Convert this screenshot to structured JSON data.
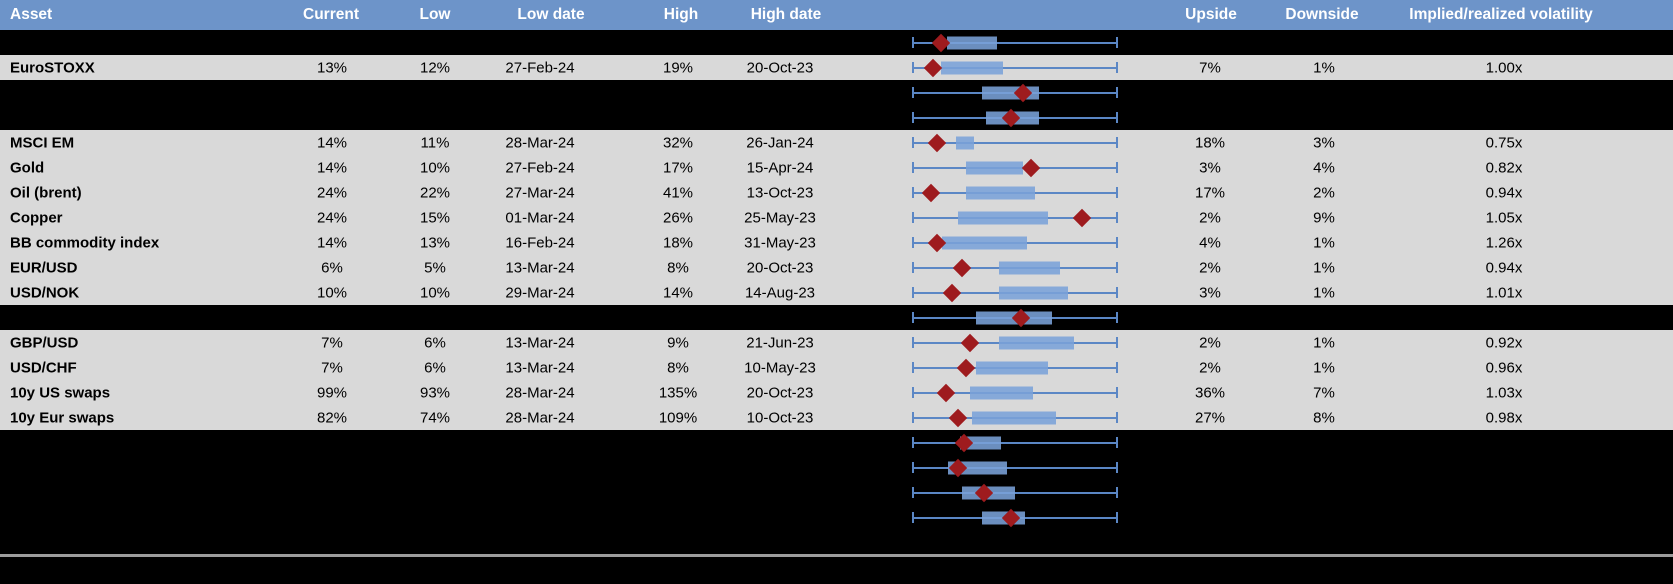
{
  "header": {
    "asset": "Asset",
    "current": "Current",
    "low": "Low",
    "low_date": "Low date",
    "high": "High",
    "high_date": "High date",
    "upside": "Upside",
    "downside": "Downside",
    "implied": "Implied/realized volatility"
  },
  "colors": {
    "header_bg": "#6D94C9",
    "header_text": "#FFFFFF",
    "data_row_bg": "#D9D9D9",
    "separator_row_bg": "#000000",
    "text": "#000000",
    "box_fill": "#7AA2D8",
    "whisker_line": "#5B87C5",
    "marker_diamond": "#9E1B1E",
    "bottom_divider": "#9C9C9C"
  },
  "table": {
    "rows": [
      {
        "type": "separator",
        "label": "",
        "current": "",
        "low": "",
        "low_date": "",
        "high": "",
        "high_date": "",
        "upside": "",
        "downside": "",
        "implied": "",
        "plot": {
          "box_lo": 0.165,
          "box_hi": 0.41,
          "marker": 0.136
        }
      },
      {
        "type": "data",
        "label": "EuroSTOXX",
        "current": "13%",
        "low": "12%",
        "low_date": "27-Feb-24",
        "high": "19%",
        "high_date": "20-Oct-23",
        "upside": "7%",
        "downside": "1%",
        "implied": "1.00x",
        "plot": {
          "box_lo": 0.137,
          "box_hi": 0.44,
          "marker": 0.098
        }
      },
      {
        "type": "separator",
        "label": "",
        "current": "",
        "low": "",
        "low_date": "",
        "high": "",
        "high_date": "",
        "upside": "",
        "downside": "",
        "implied": "",
        "plot": {
          "box_lo": 0.34,
          "box_hi": 0.62,
          "marker": 0.54
        }
      },
      {
        "type": "separator",
        "label": "",
        "current": "",
        "low": "",
        "low_date": "",
        "high": "",
        "high_date": "",
        "upside": "",
        "downside": "",
        "implied": "",
        "plot": {
          "box_lo": 0.36,
          "box_hi": 0.62,
          "marker": 0.48
        }
      },
      {
        "type": "data",
        "label": "MSCI EM",
        "current": "14%",
        "low": "11%",
        "low_date": "28-Mar-24",
        "high": "32%",
        "high_date": "26-Jan-24",
        "upside": "18%",
        "downside": "3%",
        "implied": "0.75x",
        "plot": {
          "box_lo": 0.21,
          "box_hi": 0.3,
          "marker": 0.12
        }
      },
      {
        "type": "data",
        "label": "Gold",
        "current": "14%",
        "low": "10%",
        "low_date": "27-Feb-24",
        "high": "17%",
        "high_date": "15-Apr-24",
        "upside": "3%",
        "downside": "4%",
        "implied": "0.82x",
        "plot": {
          "box_lo": 0.26,
          "box_hi": 0.54,
          "marker": 0.58
        }
      },
      {
        "type": "data",
        "label": "Oil (brent)",
        "current": "24%",
        "low": "22%",
        "low_date": "27-Mar-24",
        "high": "41%",
        "high_date": "13-Oct-23",
        "upside": "17%",
        "downside": "2%",
        "implied": "0.94x",
        "plot": {
          "box_lo": 0.26,
          "box_hi": 0.6,
          "marker": 0.09
        }
      },
      {
        "type": "data",
        "label": "Copper",
        "current": "24%",
        "low": "15%",
        "low_date": "01-Mar-24",
        "high": "26%",
        "high_date": "25-May-23",
        "upside": "2%",
        "downside": "9%",
        "implied": "1.05x",
        "plot": {
          "box_lo": 0.22,
          "box_hi": 0.66,
          "marker": 0.83
        }
      },
      {
        "type": "data",
        "label": "BB commodity index",
        "current": "14%",
        "low": "13%",
        "low_date": "16-Feb-24",
        "high": "18%",
        "high_date": "31-May-23",
        "upside": "4%",
        "downside": "1%",
        "implied": "1.26x",
        "plot": {
          "box_lo": 0.14,
          "box_hi": 0.56,
          "marker": 0.12
        }
      },
      {
        "type": "data",
        "label": "EUR/USD",
        "current": "6%",
        "low": "5%",
        "low_date": "13-Mar-24",
        "high": "8%",
        "high_date": "20-Oct-23",
        "upside": "2%",
        "downside": "1%",
        "implied": "0.94x",
        "plot": {
          "box_lo": 0.42,
          "box_hi": 0.72,
          "marker": 0.24
        }
      },
      {
        "type": "data",
        "label": "USD/NOK",
        "current": "10%",
        "low": "10%",
        "low_date": "29-Mar-24",
        "high": "14%",
        "high_date": "14-Aug-23",
        "upside": "3%",
        "downside": "1%",
        "implied": "1.01x",
        "plot": {
          "box_lo": 0.42,
          "box_hi": 0.76,
          "marker": 0.19
        }
      },
      {
        "type": "separator",
        "label": "",
        "current": "",
        "low": "",
        "low_date": "",
        "high": "",
        "high_date": "",
        "upside": "",
        "downside": "",
        "implied": "",
        "plot": {
          "box_lo": 0.31,
          "box_hi": 0.68,
          "marker": 0.53
        }
      },
      {
        "type": "data",
        "label": "GBP/USD",
        "current": "7%",
        "low": "6%",
        "low_date": "13-Mar-24",
        "high": "9%",
        "high_date": "21-Jun-23",
        "upside": "2%",
        "downside": "1%",
        "implied": "0.92x",
        "plot": {
          "box_lo": 0.42,
          "box_hi": 0.79,
          "marker": 0.28
        }
      },
      {
        "type": "data",
        "label": "USD/CHF",
        "current": "7%",
        "low": "6%",
        "low_date": "13-Mar-24",
        "high": "8%",
        "high_date": "10-May-23",
        "upside": "2%",
        "downside": "1%",
        "implied": "0.96x",
        "plot": {
          "box_lo": 0.31,
          "box_hi": 0.66,
          "marker": 0.26
        }
      },
      {
        "type": "data",
        "label": "10y US swaps",
        "current": "99%",
        "low": "93%",
        "low_date": "28-Mar-24",
        "high": "135%",
        "high_date": "20-Oct-23",
        "upside": "36%",
        "downside": "7%",
        "implied": "1.03x",
        "plot": {
          "box_lo": 0.28,
          "box_hi": 0.59,
          "marker": 0.16
        }
      },
      {
        "type": "data",
        "label": "10y Eur swaps",
        "current": "82%",
        "low": "74%",
        "low_date": "28-Mar-24",
        "high": "109%",
        "high_date": "10-Oct-23",
        "upside": "27%",
        "downside": "8%",
        "implied": "0.98x",
        "plot": {
          "box_lo": 0.29,
          "box_hi": 0.7,
          "marker": 0.22
        }
      },
      {
        "type": "separator",
        "label": "",
        "current": "",
        "low": "",
        "low_date": "",
        "high": "",
        "high_date": "",
        "upside": "",
        "downside": "",
        "implied": "",
        "plot": {
          "box_lo": 0.23,
          "box_hi": 0.43,
          "marker": 0.25
        }
      },
      {
        "type": "separator",
        "label": "",
        "current": "",
        "low": "",
        "low_date": "",
        "high": "",
        "high_date": "",
        "upside": "",
        "downside": "",
        "implied": "",
        "plot": {
          "box_lo": 0.17,
          "box_hi": 0.46,
          "marker": 0.22
        }
      },
      {
        "type": "separator",
        "label": "",
        "current": "",
        "low": "",
        "low_date": "",
        "high": "",
        "high_date": "",
        "upside": "",
        "downside": "",
        "implied": "",
        "plot": {
          "box_lo": 0.24,
          "box_hi": 0.5,
          "marker": 0.35
        }
      },
      {
        "type": "separator",
        "label": "",
        "current": "",
        "low": "",
        "low_date": "",
        "high": "",
        "high_date": "",
        "upside": "",
        "downside": "",
        "implied": "",
        "plot": {
          "box_lo": 0.34,
          "box_hi": 0.55,
          "marker": 0.48
        }
      }
    ]
  },
  "chart_data": [
    {
      "type": "table",
      "title": "Implied volatility overview",
      "columns": [
        "Asset",
        "Current",
        "Low",
        "Low date",
        "High",
        "High date",
        "Upside",
        "Downside",
        "Implied/realized volatility"
      ],
      "rows": [
        [
          "EuroSTOXX",
          "13%",
          "12%",
          "27-Feb-24",
          "19%",
          "20-Oct-23",
          "7%",
          "1%",
          "1.00x"
        ],
        [
          "MSCI EM",
          "14%",
          "11%",
          "28-Mar-24",
          "32%",
          "26-Jan-24",
          "18%",
          "3%",
          "0.75x"
        ],
        [
          "Gold",
          "14%",
          "10%",
          "27-Feb-24",
          "17%",
          "15-Apr-24",
          "3%",
          "4%",
          "0.82x"
        ],
        [
          "Oil (brent)",
          "24%",
          "22%",
          "27-Mar-24",
          "41%",
          "13-Oct-23",
          "17%",
          "2%",
          "0.94x"
        ],
        [
          "Copper",
          "24%",
          "15%",
          "01-Mar-24",
          "26%",
          "25-May-23",
          "2%",
          "9%",
          "1.05x"
        ],
        [
          "BB commodity index",
          "14%",
          "13%",
          "16-Feb-24",
          "18%",
          "31-May-23",
          "4%",
          "1%",
          "1.26x"
        ],
        [
          "EUR/USD",
          "6%",
          "5%",
          "13-Mar-24",
          "8%",
          "20-Oct-23",
          "2%",
          "1%",
          "0.94x"
        ],
        [
          "USD/NOK",
          "10%",
          "10%",
          "29-Mar-24",
          "14%",
          "14-Aug-23",
          "3%",
          "1%",
          "1.01x"
        ],
        [
          "GBP/USD",
          "7%",
          "6%",
          "13-Mar-24",
          "9%",
          "21-Jun-23",
          "2%",
          "1%",
          "0.92x"
        ],
        [
          "USD/CHF",
          "7%",
          "6%",
          "13-Mar-24",
          "8%",
          "10-May-23",
          "2%",
          "1%",
          "0.96x"
        ],
        [
          "10y US swaps",
          "99%",
          "93%",
          "28-Mar-24",
          "135%",
          "20-Oct-23",
          "36%",
          "7%",
          "1.03x"
        ],
        [
          "10y Eur swaps",
          "82%",
          "74%",
          "28-Mar-24",
          "109%",
          "10-Oct-23",
          "27%",
          "8%",
          "0.98x"
        ]
      ]
    },
    {
      "type": "boxplot",
      "orientation": "horizontal",
      "note": "One horizontal box-whisker per row; whisker spans full normalized low-high range [0,1]; blue box = inner range; red diamond = current level",
      "xlim": [
        0,
        1
      ],
      "rows": [
        {
          "index": 1,
          "whisker": [
            0,
            1
          ],
          "box": [
            0.165,
            0.41
          ],
          "marker": 0.136
        },
        {
          "index": 2,
          "whisker": [
            0,
            1
          ],
          "box": [
            0.137,
            0.44
          ],
          "marker": 0.098
        },
        {
          "index": 3,
          "whisker": [
            0,
            1
          ],
          "box": [
            0.34,
            0.62
          ],
          "marker": 0.54
        },
        {
          "index": 4,
          "whisker": [
            0,
            1
          ],
          "box": [
            0.36,
            0.62
          ],
          "marker": 0.48
        },
        {
          "index": 5,
          "whisker": [
            0,
            1
          ],
          "box": [
            0.21,
            0.3
          ],
          "marker": 0.12
        },
        {
          "index": 6,
          "whisker": [
            0,
            1
          ],
          "box": [
            0.26,
            0.54
          ],
          "marker": 0.58
        },
        {
          "index": 7,
          "whisker": [
            0,
            1
          ],
          "box": [
            0.26,
            0.6
          ],
          "marker": 0.09
        },
        {
          "index": 8,
          "whisker": [
            0,
            1
          ],
          "box": [
            0.22,
            0.66
          ],
          "marker": 0.83
        },
        {
          "index": 9,
          "whisker": [
            0,
            1
          ],
          "box": [
            0.14,
            0.56
          ],
          "marker": 0.12
        },
        {
          "index": 10,
          "whisker": [
            0,
            1
          ],
          "box": [
            0.42,
            0.72
          ],
          "marker": 0.24
        },
        {
          "index": 11,
          "whisker": [
            0,
            1
          ],
          "box": [
            0.42,
            0.76
          ],
          "marker": 0.19
        },
        {
          "index": 12,
          "whisker": [
            0,
            1
          ],
          "box": [
            0.31,
            0.68
          ],
          "marker": 0.53
        },
        {
          "index": 13,
          "whisker": [
            0,
            1
          ],
          "box": [
            0.42,
            0.79
          ],
          "marker": 0.28
        },
        {
          "index": 14,
          "whisker": [
            0,
            1
          ],
          "box": [
            0.31,
            0.66
          ],
          "marker": 0.26
        },
        {
          "index": 15,
          "whisker": [
            0,
            1
          ],
          "box": [
            0.28,
            0.59
          ],
          "marker": 0.16
        },
        {
          "index": 16,
          "whisker": [
            0,
            1
          ],
          "box": [
            0.29,
            0.7
          ],
          "marker": 0.22
        },
        {
          "index": 17,
          "whisker": [
            0,
            1
          ],
          "box": [
            0.23,
            0.43
          ],
          "marker": 0.25
        },
        {
          "index": 18,
          "whisker": [
            0,
            1
          ],
          "box": [
            0.17,
            0.46
          ],
          "marker": 0.22
        },
        {
          "index": 19,
          "whisker": [
            0,
            1
          ],
          "box": [
            0.24,
            0.5
          ],
          "marker": 0.35
        },
        {
          "index": 20,
          "whisker": [
            0,
            1
          ],
          "box": [
            0.34,
            0.55
          ],
          "marker": 0.48
        }
      ]
    }
  ]
}
